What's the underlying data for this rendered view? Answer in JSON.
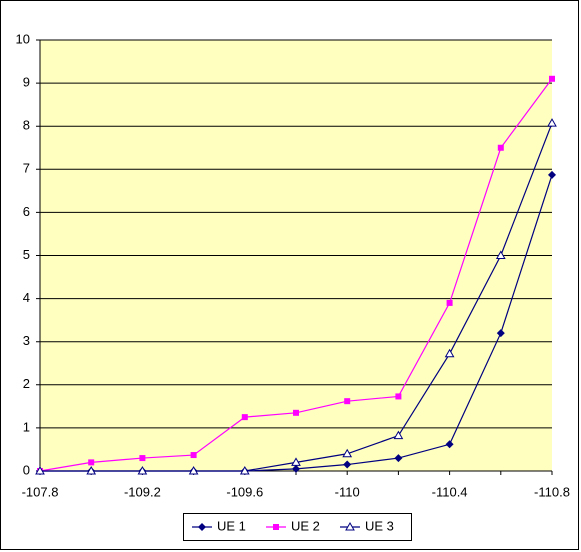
{
  "chart_data": {
    "type": "line",
    "categories": [
      "-107.8",
      null,
      "-109.2",
      null,
      "-109.6",
      null,
      "-110",
      null,
      "-110.4",
      null,
      "-110.8"
    ],
    "series": [
      {
        "name": "UE 1",
        "color": "#000080",
        "marker": "diamond",
        "values": [
          0,
          0,
          0,
          0,
          0,
          0.05,
          0.15,
          0.3,
          0.62,
          3.2,
          6.87
        ]
      },
      {
        "name": "UE 2",
        "color": "#ff00ff",
        "marker": "square",
        "values": [
          0,
          0.2,
          0.3,
          0.37,
          1.25,
          1.35,
          1.62,
          1.73,
          3.9,
          7.5,
          9.1
        ]
      },
      {
        "name": "UE 3",
        "color": "#000080",
        "marker": "triangle",
        "values": [
          0,
          0,
          0,
          0,
          0,
          0.2,
          0.4,
          0.82,
          2.72,
          5.0,
          8.07
        ]
      }
    ],
    "ylim": [
      0,
      10
    ],
    "yticks": [
      0,
      1,
      2,
      3,
      4,
      5,
      6,
      7,
      8,
      9,
      10
    ],
    "grid": true,
    "legend": "bottom"
  }
}
